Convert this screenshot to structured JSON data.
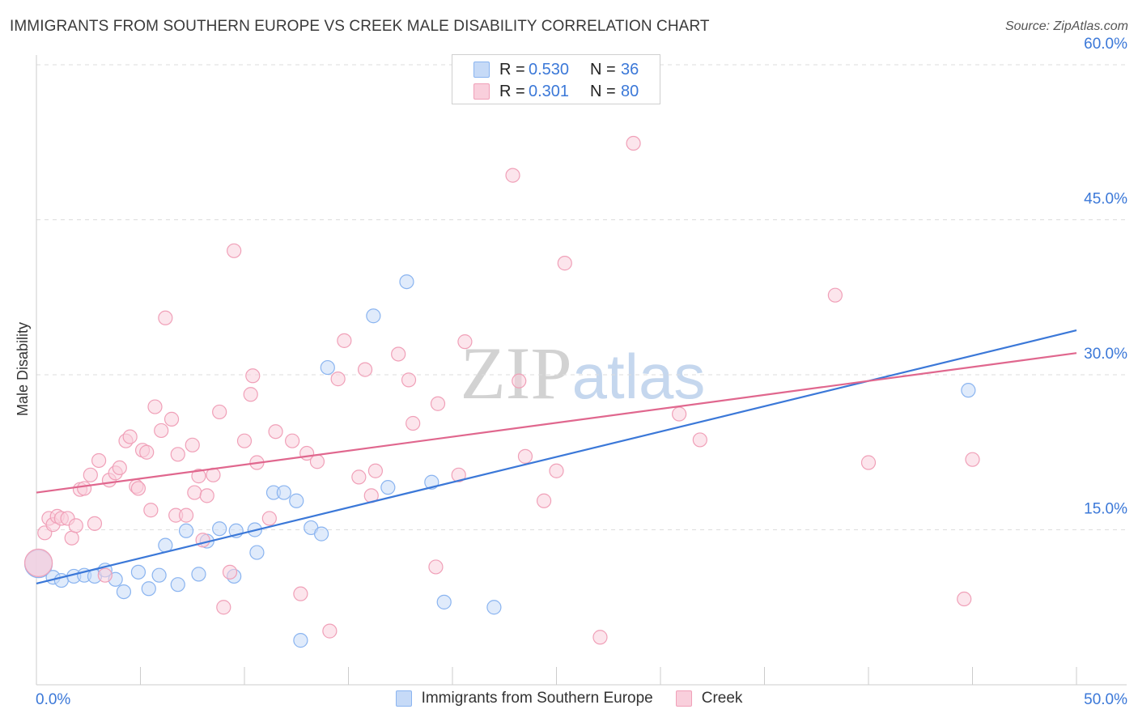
{
  "chart_data": {
    "type": "scatter",
    "title": "IMMIGRANTS FROM SOUTHERN EUROPE VS CREEK MALE DISABILITY CORRELATION CHART",
    "source": "Source: ZipAtlas.com",
    "xlabel": "",
    "ylabel": "Male Disability",
    "xlim": [
      0,
      50
    ],
    "ylim": [
      0,
      60
    ],
    "x_tick_labels": [
      "0.0%",
      "50.0%"
    ],
    "y_ticks": [
      15,
      30,
      45,
      60
    ],
    "y_tick_labels": [
      "15.0%",
      "30.0%",
      "45.0%",
      "60.0%"
    ],
    "grid": true,
    "legend_position": "top-center",
    "watermark": "ZIPatlas",
    "stats": [
      {
        "r_label": "R =",
        "r": "0.530",
        "n_label": "N =",
        "n": "36"
      },
      {
        "r_label": "R =",
        "r": "0.301",
        "n_label": "N =",
        "n": "80"
      }
    ],
    "series": [
      {
        "name": "Immigrants from Southern Europe",
        "color": "#8ab4f0",
        "fill": "#c6daf7",
        "line_color": "#3b78d8",
        "trend": [
          [
            0,
            9.8
          ],
          [
            50,
            34.3
          ]
        ],
        "points": [
          [
            0.1,
            11.7,
            "large"
          ],
          [
            0.8,
            10.4
          ],
          [
            1.2,
            10.1
          ],
          [
            1.8,
            10.5
          ],
          [
            2.3,
            10.6
          ],
          [
            2.8,
            10.5
          ],
          [
            3.3,
            11.1
          ],
          [
            3.8,
            10.2
          ],
          [
            4.2,
            9.0
          ],
          [
            4.9,
            10.9
          ],
          [
            5.4,
            9.3
          ],
          [
            5.9,
            10.6
          ],
          [
            6.2,
            13.5
          ],
          [
            6.8,
            9.7
          ],
          [
            7.2,
            14.9
          ],
          [
            7.8,
            10.7
          ],
          [
            8.2,
            13.9
          ],
          [
            8.8,
            15.1
          ],
          [
            9.5,
            10.5
          ],
          [
            9.6,
            14.9
          ],
          [
            10.5,
            15.0
          ],
          [
            10.6,
            12.8
          ],
          [
            11.4,
            18.6
          ],
          [
            11.9,
            18.6
          ],
          [
            12.5,
            17.8
          ],
          [
            12.7,
            4.3
          ],
          [
            13.2,
            15.2
          ],
          [
            13.7,
            14.6
          ],
          [
            14.0,
            30.7
          ],
          [
            16.2,
            35.7
          ],
          [
            16.9,
            19.1
          ],
          [
            17.8,
            39.0
          ],
          [
            19.0,
            19.6
          ],
          [
            19.6,
            8.0
          ],
          [
            22.0,
            7.5
          ],
          [
            44.8,
            28.5
          ]
        ]
      },
      {
        "name": "Creek",
        "color": "#f0a0b8",
        "fill": "#f9cfdc",
        "line_color": "#e0678e",
        "trend": [
          [
            0,
            18.6
          ],
          [
            50,
            32.1
          ]
        ],
        "points": [
          [
            0.1,
            11.8,
            "large"
          ],
          [
            0.4,
            14.7
          ],
          [
            0.6,
            16.1
          ],
          [
            0.8,
            15.5
          ],
          [
            1.0,
            16.3
          ],
          [
            1.2,
            16.1
          ],
          [
            1.5,
            16.1
          ],
          [
            1.7,
            14.2
          ],
          [
            1.9,
            15.4
          ],
          [
            2.1,
            18.9
          ],
          [
            2.3,
            19.0
          ],
          [
            2.6,
            20.3
          ],
          [
            2.8,
            15.6
          ],
          [
            3.0,
            21.7
          ],
          [
            3.3,
            10.6
          ],
          [
            3.5,
            19.8
          ],
          [
            3.8,
            20.5
          ],
          [
            4.0,
            21.0
          ],
          [
            4.3,
            23.6
          ],
          [
            4.5,
            24.0
          ],
          [
            4.8,
            19.2
          ],
          [
            4.9,
            19.0
          ],
          [
            5.1,
            22.7
          ],
          [
            5.3,
            22.5
          ],
          [
            5.5,
            16.9
          ],
          [
            5.7,
            26.9
          ],
          [
            6.0,
            24.6
          ],
          [
            6.2,
            35.5
          ],
          [
            6.5,
            25.7
          ],
          [
            6.7,
            16.4
          ],
          [
            6.8,
            22.3
          ],
          [
            7.2,
            16.4
          ],
          [
            7.5,
            23.2
          ],
          [
            7.6,
            18.6
          ],
          [
            7.8,
            20.2
          ],
          [
            8.0,
            14.0
          ],
          [
            8.2,
            18.3
          ],
          [
            8.5,
            20.3
          ],
          [
            8.8,
            26.4
          ],
          [
            9.0,
            7.5
          ],
          [
            9.3,
            10.9
          ],
          [
            9.5,
            42.0
          ],
          [
            10.0,
            23.6
          ],
          [
            10.3,
            28.1
          ],
          [
            10.4,
            29.9
          ],
          [
            10.6,
            21.5
          ],
          [
            11.2,
            16.1
          ],
          [
            11.5,
            24.5
          ],
          [
            12.3,
            23.6
          ],
          [
            12.7,
            8.8
          ],
          [
            13.0,
            22.4
          ],
          [
            13.5,
            21.6
          ],
          [
            14.1,
            5.2
          ],
          [
            14.5,
            29.6
          ],
          [
            14.8,
            33.3
          ],
          [
            15.5,
            20.1
          ],
          [
            15.8,
            30.5
          ],
          [
            16.1,
            18.3
          ],
          [
            16.3,
            20.7
          ],
          [
            17.4,
            32.0
          ],
          [
            17.9,
            29.5
          ],
          [
            18.1,
            25.3
          ],
          [
            19.2,
            11.4
          ],
          [
            19.3,
            27.2
          ],
          [
            20.3,
            20.3
          ],
          [
            20.6,
            33.2
          ],
          [
            22.9,
            49.3
          ],
          [
            23.2,
            29.4
          ],
          [
            23.5,
            22.1
          ],
          [
            24.4,
            17.8
          ],
          [
            25.0,
            20.7
          ],
          [
            25.4,
            40.8
          ],
          [
            27.1,
            4.6
          ],
          [
            28.7,
            52.4
          ],
          [
            30.9,
            26.2
          ],
          [
            31.9,
            23.7
          ],
          [
            38.4,
            37.7
          ],
          [
            40.0,
            21.5
          ],
          [
            44.6,
            8.3
          ],
          [
            45.0,
            21.8
          ]
        ]
      }
    ]
  }
}
